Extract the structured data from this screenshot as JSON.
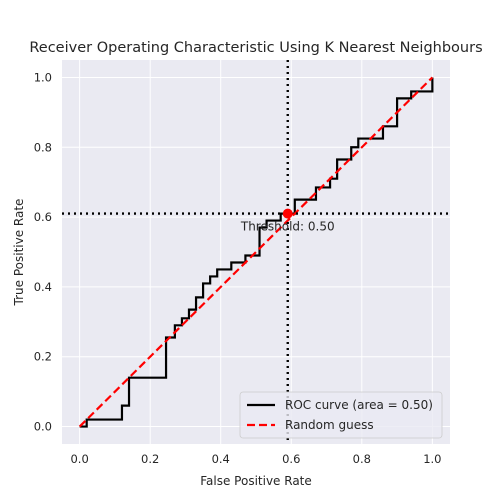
{
  "chart_data": {
    "type": "line",
    "title": "Receiver Operating Characteristic Using K Nearest Neighbours",
    "xlabel": "False Positive Rate",
    "ylabel": "True Positive Rate",
    "xlim": [
      -0.05,
      1.05
    ],
    "ylim": [
      -0.05,
      1.05
    ],
    "grid": true,
    "legend_position": "lower-right",
    "x_ticks": [
      0.0,
      0.2,
      0.4,
      0.6,
      0.8,
      1.0
    ],
    "x_tick_labels": [
      "0.0",
      "0.2",
      "0.4",
      "0.6",
      "0.8",
      "1.0"
    ],
    "y_ticks": [
      0.0,
      0.2,
      0.4,
      0.6,
      0.8,
      1.0
    ],
    "y_tick_labels": [
      "0.0",
      "0.2",
      "0.4",
      "0.6",
      "0.8",
      "1.0"
    ],
    "series": [
      {
        "name": "ROC curve (area = 0.50)",
        "color": "#000000",
        "style": "solid",
        "x": [
          0.0,
          0.02,
          0.02,
          0.12,
          0.12,
          0.14,
          0.14,
          0.245,
          0.245,
          0.27,
          0.27,
          0.29,
          0.29,
          0.31,
          0.31,
          0.33,
          0.33,
          0.35,
          0.35,
          0.37,
          0.37,
          0.39,
          0.39,
          0.43,
          0.43,
          0.47,
          0.47,
          0.51,
          0.51,
          0.53,
          0.53,
          0.57,
          0.57,
          0.59,
          0.59,
          0.61,
          0.61,
          0.67,
          0.67,
          0.71,
          0.71,
          0.73,
          0.73,
          0.77,
          0.77,
          0.79,
          0.79,
          0.86,
          0.86,
          0.9,
          0.9,
          0.94,
          0.94,
          1.0,
          1.0
        ],
        "y": [
          0.0,
          0.0,
          0.02,
          0.02,
          0.06,
          0.06,
          0.14,
          0.14,
          0.255,
          0.255,
          0.29,
          0.29,
          0.31,
          0.31,
          0.335,
          0.335,
          0.37,
          0.37,
          0.41,
          0.41,
          0.43,
          0.43,
          0.45,
          0.45,
          0.47,
          0.47,
          0.49,
          0.49,
          0.57,
          0.57,
          0.59,
          0.59,
          0.61,
          0.61,
          0.61,
          0.61,
          0.65,
          0.65,
          0.685,
          0.685,
          0.71,
          0.71,
          0.765,
          0.765,
          0.8,
          0.8,
          0.825,
          0.825,
          0.86,
          0.86,
          0.94,
          0.94,
          0.96,
          0.96,
          1.0
        ]
      },
      {
        "name": "Random guess",
        "color": "#ff0000",
        "style": "dashed",
        "x": [
          0.0,
          1.0
        ],
        "y": [
          0.0,
          1.0
        ]
      }
    ],
    "threshold": {
      "x": 0.59,
      "y": 0.61,
      "label": "Threshold: 0.50",
      "color": "#ff0000",
      "guide_color": "#000000"
    },
    "colors": {
      "plot_background": "#eaeaf2",
      "grid": "#ffffff"
    }
  }
}
